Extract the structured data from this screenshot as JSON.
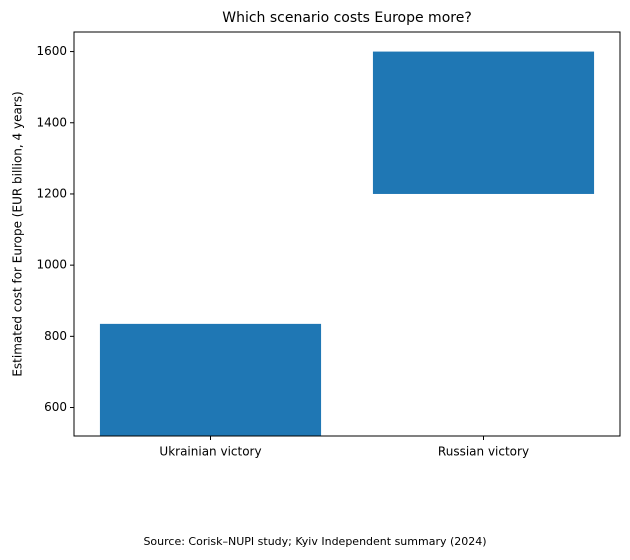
{
  "chart_data": {
    "type": "floating-bar",
    "title": "Which scenario costs Europe more?",
    "ylabel": "Estimated cost for Europe (EUR billion, 4 years)",
    "categories": [
      "Ukrainian victory",
      "Russian victory"
    ],
    "low": [
      null,
      1200
    ],
    "high": [
      835,
      1600
    ],
    "color": "#1f77b4",
    "ylim": [
      520,
      1655
    ],
    "yticks": [
      600,
      800,
      1000,
      1200,
      1400,
      1600
    ],
    "source": "Source: Corisk–NUPI study; Kyiv Independent summary (2024)"
  }
}
